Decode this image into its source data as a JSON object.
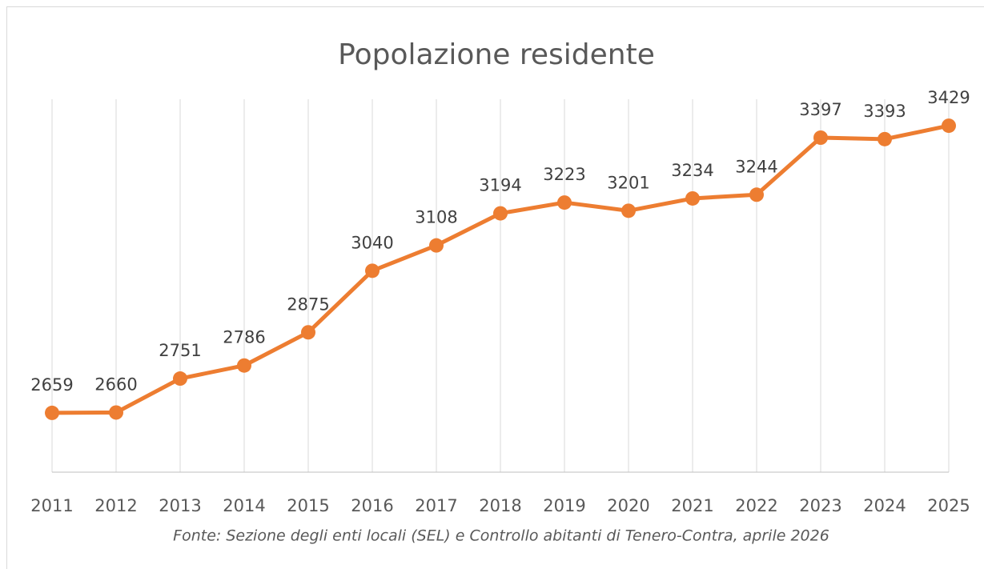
{
  "chart_data": {
    "type": "line",
    "title": "Popolazione residente",
    "categories": [
      "2011",
      "2012",
      "2013",
      "2014",
      "2015",
      "2016",
      "2017",
      "2018",
      "2019",
      "2020",
      "2021",
      "2022",
      "2023",
      "2024",
      "2025"
    ],
    "series": [
      {
        "name": "Popolazione residente",
        "color": "#ED7D31",
        "values": [
          2659,
          2660,
          2751,
          2786,
          2875,
          3040,
          3108,
          3194,
          3223,
          3201,
          3234,
          3244,
          3397,
          3393,
          3429
        ]
      }
    ],
    "ylim": [
      2500,
      3500
    ],
    "grid": true,
    "annotation": "Fonte: Sezione degli enti locali (SEL) e Controllo abitanti di Tenero-Contra, aprile 2026"
  }
}
